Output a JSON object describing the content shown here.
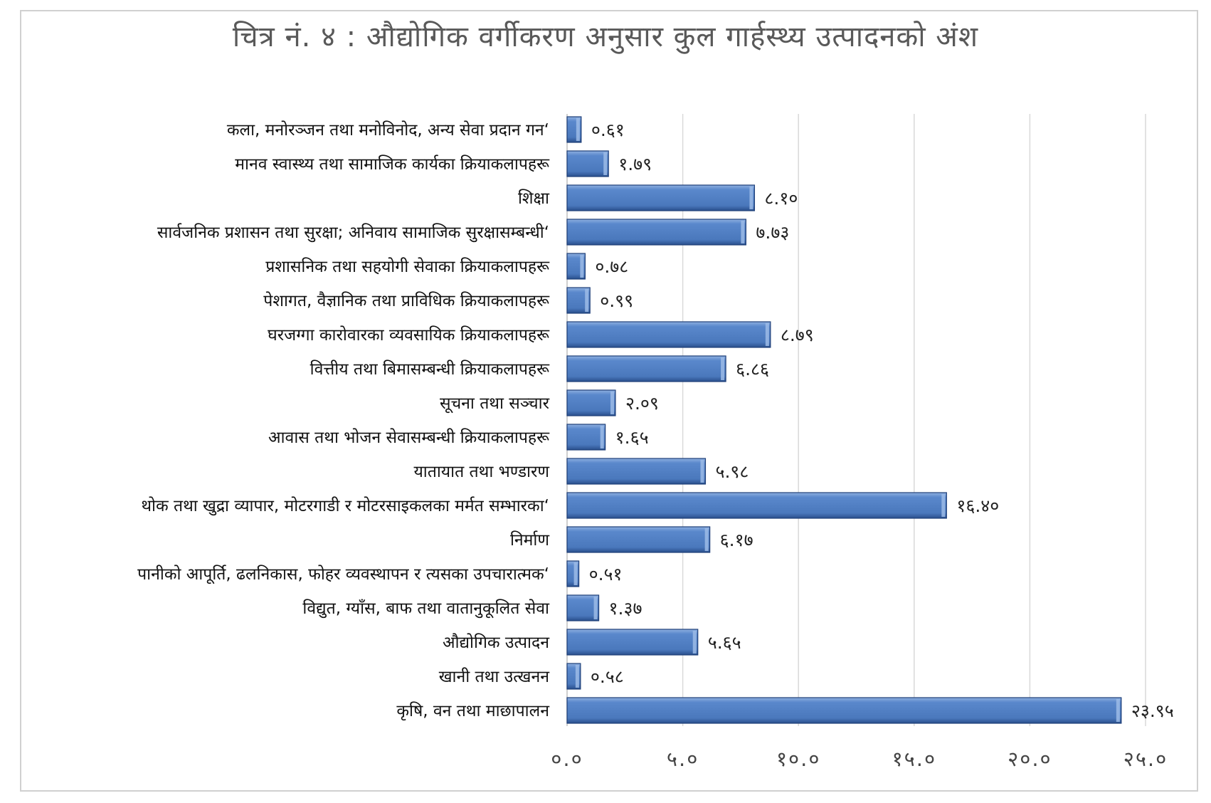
{
  "chart_data": {
    "type": "bar",
    "orientation": "horizontal",
    "title": "चित्र नं. ४ : औद्योगिक वर्गीकरण अनुसार कुल गार्हस्थ्य उत्पादनको अंश",
    "xlabel": "",
    "ylabel": "",
    "xlim": [
      0,
      25
    ],
    "grid": true,
    "legend": "none",
    "bar_color": "#4F7EC2",
    "tick_values": [
      0,
      5,
      10,
      15,
      20,
      25
    ],
    "tick_labels": [
      "०.०",
      "५.०",
      "१०.०",
      "१५.०",
      "२०.०",
      "२५.०"
    ],
    "categories": [
      "कला, मनोरञ्जन तथा मनोविनोद, अन्य सेवा प्रदान गन‘",
      "मानव स्वास्थ्य तथा सामाजिक कार्यका क्रियाकलापहरू",
      "शिक्षा",
      "सार्वजनिक प्रशासन तथा सुरक्षा; अनिवाय सामाजिक सुरक्षासम्बन्धी‘",
      "प्रशासनिक तथा सहयोगी सेवाका क्रियाकलापहरू",
      "पेशागत, वैज्ञानिक तथा प्राविधिक क्रियाकलापहरू",
      "घरजग्गा कारोवारका व्यवसायिक क्रियाकलापहरू",
      "वित्तीय तथा बिमासम्बन्धी क्रियाकलापहरू",
      "सूचना तथा सञ्चार",
      "आवास तथा भोजन सेवासम्बन्धी क्रियाकलापहरू",
      "यातायात तथा भण्डारण",
      "थोक तथा खुद्रा व्यापार, मोटरगाडी र मोटरसाइकलका मर्मत सम्भारका‘",
      "निर्माण",
      "पानीको आपूर्ति, ढलनिकास, फोहर व्यवस्थापन र त्यसका उपचारात्मक‘",
      "विद्युत, ग्याँस, बाफ तथा वातानुकूलित सेवा",
      "औद्योगिक उत्पादन",
      "खानी तथा उत्खनन",
      "कृषि, वन तथा माछापालन"
    ],
    "values": [
      0.61,
      1.79,
      8.1,
      7.73,
      0.78,
      0.99,
      8.79,
      6.86,
      2.09,
      1.65,
      5.98,
      16.4,
      6.17,
      0.51,
      1.37,
      5.65,
      0.58,
      23.95
    ],
    "value_labels": [
      "०.६१",
      "१.७९",
      "८.१०",
      "७.७३",
      "०.७८",
      "०.९९",
      "८.७९",
      "६.८६",
      "२.०९",
      "१.६५",
      "५.९८",
      "१६.४०",
      "६.१७",
      "०.५१",
      "१.३७",
      "५.६५",
      "०.५८",
      "२३.९५"
    ]
  }
}
